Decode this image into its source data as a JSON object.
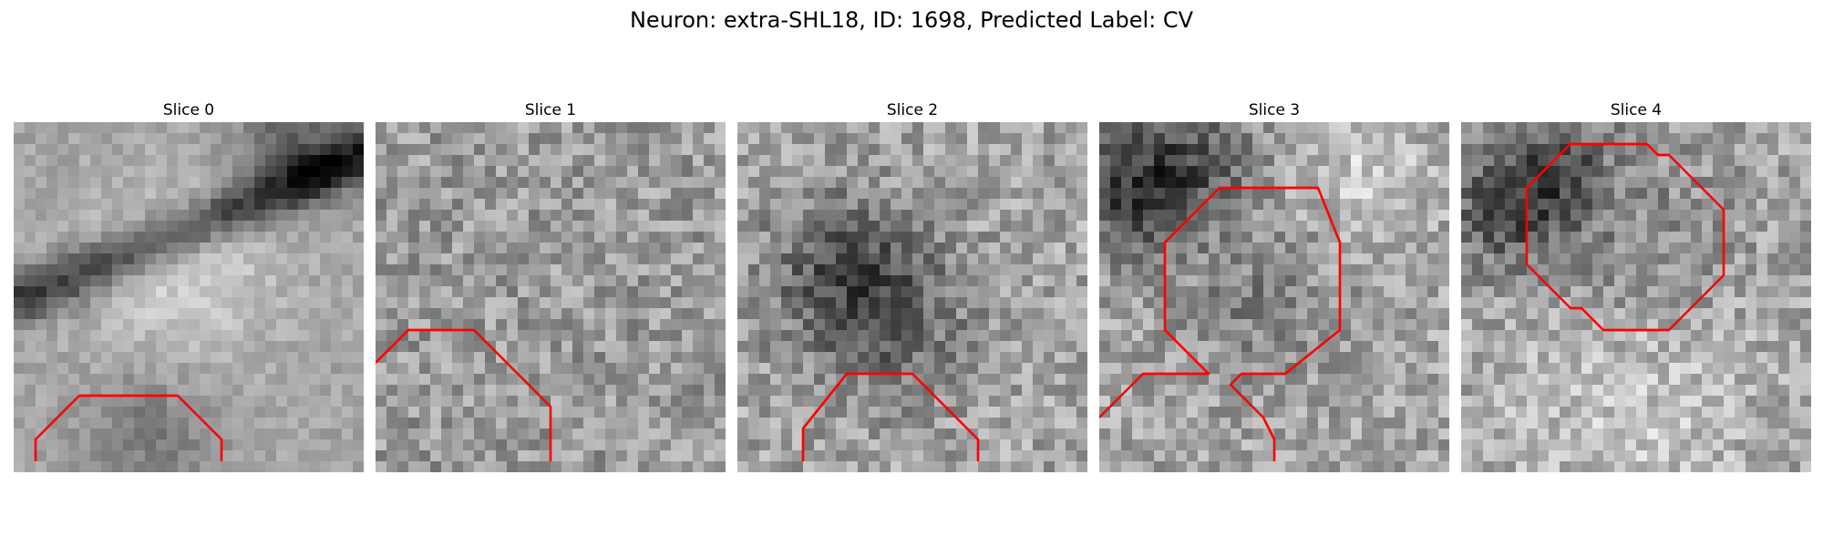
{
  "figure": {
    "title": "Neuron: extra-SHL18, ID: 1698, Predicted Label: CV"
  },
  "grid_size": 32,
  "outline_color": "#ff0000",
  "slices": [
    {
      "label": "Slice 0",
      "contour": [
        [
          2,
          31
        ],
        [
          2,
          29
        ],
        [
          6,
          25
        ],
        [
          15,
          25
        ],
        [
          19,
          29
        ],
        [
          19,
          31
        ]
      ]
    },
    {
      "label": "Slice 1",
      "contour": [
        [
          0,
          22
        ],
        [
          3,
          19
        ],
        [
          9,
          19
        ],
        [
          16,
          26
        ],
        [
          16,
          31
        ]
      ]
    },
    {
      "label": "Slice 2",
      "contour": [
        [
          6,
          31
        ],
        [
          6,
          28
        ],
        [
          10,
          23
        ],
        [
          16,
          23
        ],
        [
          22,
          29
        ],
        [
          22,
          31
        ]
      ]
    },
    {
      "label": "Slice 3",
      "contour": [
        [
          0,
          27
        ],
        [
          4,
          23
        ],
        [
          9,
          23
        ],
        [
          10,
          23
        ],
        [
          6,
          19
        ],
        [
          6,
          11
        ],
        [
          11,
          6
        ],
        [
          20,
          6
        ],
        [
          22,
          11
        ],
        [
          22,
          19
        ],
        [
          17,
          23
        ],
        [
          13,
          23
        ],
        [
          12,
          24
        ],
        [
          15,
          27
        ],
        [
          16,
          29
        ],
        [
          16,
          31
        ]
      ]
    },
    {
      "label": "Slice 4",
      "contour": [
        [
          6,
          13
        ],
        [
          6,
          6
        ],
        [
          10,
          2
        ],
        [
          17,
          2
        ],
        [
          18,
          3
        ],
        [
          19,
          3
        ],
        [
          24,
          8
        ],
        [
          24,
          14
        ],
        [
          19,
          19
        ],
        [
          13,
          19
        ],
        [
          11,
          17
        ],
        [
          10,
          17
        ],
        [
          6,
          13
        ]
      ]
    }
  ]
}
